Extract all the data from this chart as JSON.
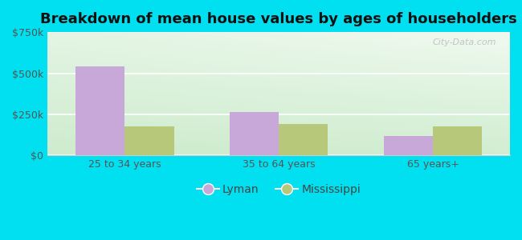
{
  "title": "Breakdown of mean house values by ages of householders",
  "categories": [
    "25 to 34 years",
    "35 to 64 years",
    "65 years+"
  ],
  "lyman_values": [
    540000,
    265000,
    120000
  ],
  "mississippi_values": [
    175000,
    190000,
    175000
  ],
  "lyman_color": "#c8a8d8",
  "mississippi_color": "#b8c87a",
  "ylim": [
    0,
    750000
  ],
  "yticks": [
    0,
    250000,
    500000,
    750000
  ],
  "ytick_labels": [
    "$0",
    "$250k",
    "$500k",
    "$750k"
  ],
  "bar_width": 0.32,
  "background_outer": "#00e0f0",
  "legend_labels": [
    "Lyman",
    "Mississippi"
  ],
  "watermark": "City-Data.com",
  "title_fontsize": 13,
  "tick_fontsize": 9,
  "legend_fontsize": 10,
  "grid_color": "#d0e8d0",
  "spine_color": "#cccccc"
}
